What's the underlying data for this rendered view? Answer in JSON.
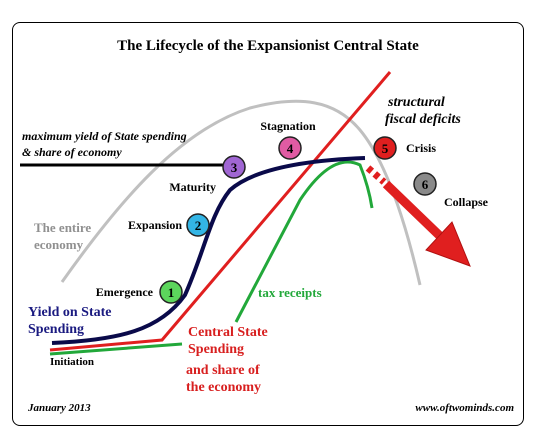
{
  "title": "The Lifecycle of the Expansionist Central State",
  "labels": {
    "max_yield_line1": "maximum yield of State spending",
    "max_yield_line2": "& share of economy",
    "entire_economy_line1": "The entire",
    "entire_economy_line2": "economy",
    "yield_line1": "Yield on State",
    "yield_line2": "Spending",
    "initiation": "Initiation",
    "central_line1": "Central State",
    "central_line2": "Spending",
    "central_line3": "and share of",
    "central_line4": "the economy",
    "tax_receipts": "tax receipts",
    "structural_line1": "structural",
    "structural_line2": "fiscal deficits"
  },
  "stages": [
    {
      "number": "1",
      "label": "Emergence",
      "color": "#5cd65c"
    },
    {
      "number": "2",
      "label": "Expansion",
      "color": "#33b5e5"
    },
    {
      "number": "3",
      "label": "Maturity",
      "color": "#a066d3"
    },
    {
      "number": "4",
      "label": "Stagnation",
      "color": "#e05ba3"
    },
    {
      "number": "5",
      "label": "Crisis",
      "color": "#e01f1f"
    },
    {
      "number": "6",
      "label": "Collapse",
      "color": "#8a8a8a"
    }
  ],
  "footer": {
    "date": "January 2013",
    "website": "www.oftwominds.com"
  },
  "colors": {
    "economy": "#c0c0c0",
    "yield": "#0a0a4a",
    "spending": "#e01f1f",
    "tax": "#22a83a",
    "max_line": "#000000",
    "label_blue": "#1a1a80",
    "label_red": "#d81f1f",
    "label_green": "#22a83a",
    "label_gray": "#909090"
  }
}
